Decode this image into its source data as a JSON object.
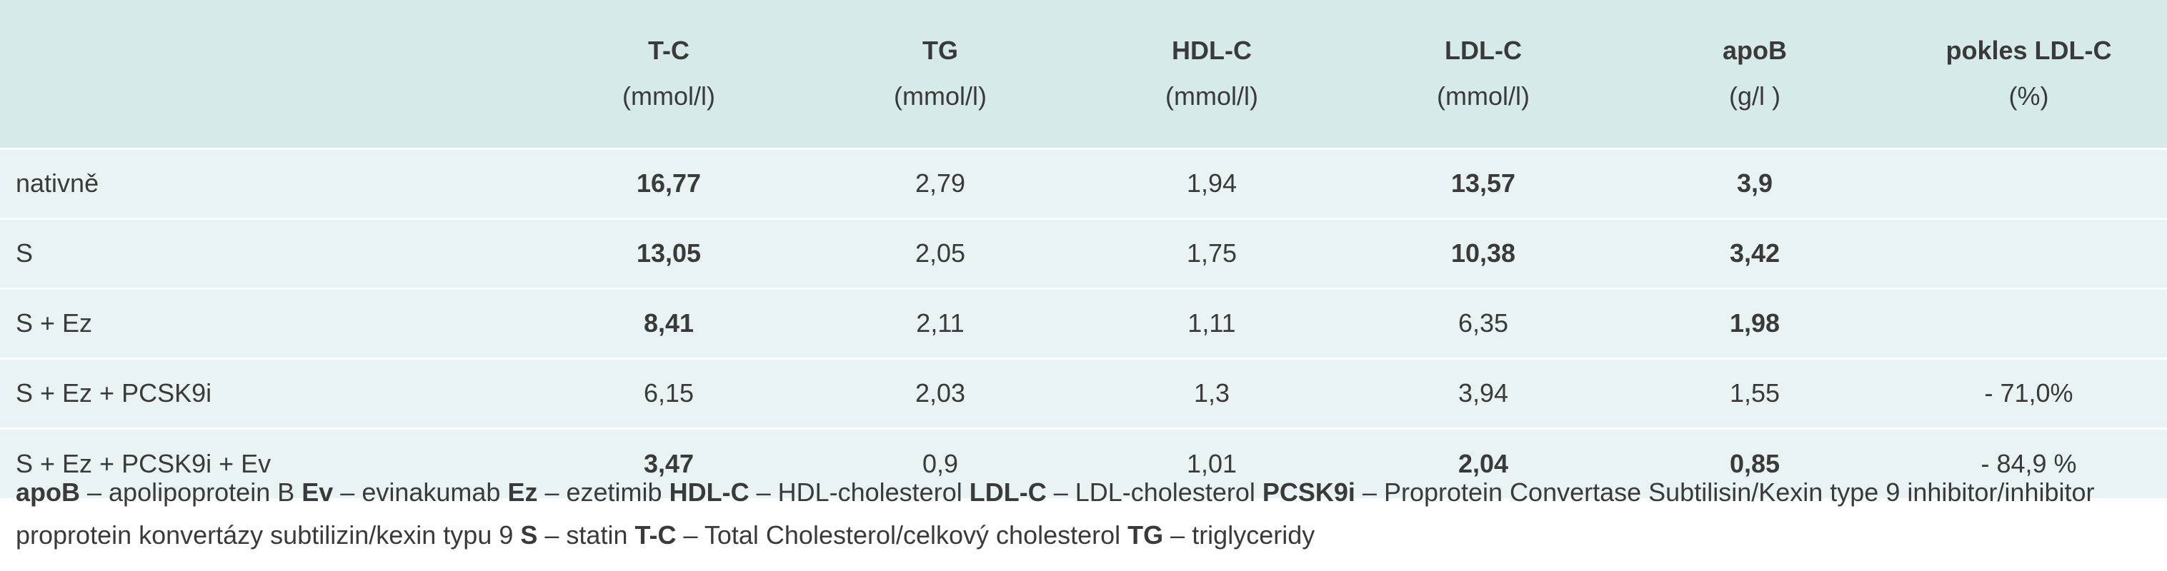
{
  "table": {
    "headers": [
      {
        "label": "",
        "unit": ""
      },
      {
        "label": "T-C",
        "unit": "(mmol/l)"
      },
      {
        "label": "TG",
        "unit": "(mmol/l)"
      },
      {
        "label": "HDL-C",
        "unit": "(mmol/l)"
      },
      {
        "label": "LDL-C",
        "unit": "(mmol/l)"
      },
      {
        "label": "apoB",
        "unit": "(g/l )"
      },
      {
        "label": "pokles LDL-C",
        "unit": "(%)"
      }
    ],
    "rows": [
      {
        "label": "nativně",
        "cells": [
          "16,77",
          "2,79",
          "1,94",
          "13,57",
          "3,9",
          ""
        ]
      },
      {
        "label": "S",
        "cells": [
          "13,05",
          "2,05",
          "1,75",
          "10,38",
          "3,42",
          ""
        ]
      },
      {
        "label": "S + Ez",
        "cells": [
          "8,41",
          "2,11",
          "1,11",
          "6,35",
          "1,98",
          ""
        ]
      },
      {
        "label": "S + Ez + PCSK9i",
        "cells": [
          "6,15",
          "2,03",
          "1,3",
          "3,94",
          "1,55",
          "- 71,0%"
        ]
      },
      {
        "label": "S + Ez + PCSK9i + Ev",
        "cells": [
          "3,47",
          "0,9",
          "1,01",
          "2,04",
          "0,85",
          "- 84,9 %"
        ]
      }
    ]
  },
  "legend": [
    {
      "term": "apoB",
      "definition": "apolipoprotein B"
    },
    {
      "term": "Ev",
      "definition": "evinakumab"
    },
    {
      "term": "Ez",
      "definition": "ezetimib"
    },
    {
      "term": "HDL-C",
      "definition": "HDL-cholesterol"
    },
    {
      "term": "LDL-C",
      "definition": "LDL-cholesterol"
    },
    {
      "term": "PCSK9i",
      "definition": "Proprotein Convertase Subtilisin/Kexin type 9 inhibitor/inhibitor proprotein konvertázy subtilizin/kexin typu 9"
    },
    {
      "term": "S",
      "definition": "statin"
    },
    {
      "term": "T-C",
      "definition": "Total Cholesterol/celkový cholesterol"
    },
    {
      "term": "TG",
      "definition": "triglyceridy"
    }
  ],
  "legend_separator": " – "
}
